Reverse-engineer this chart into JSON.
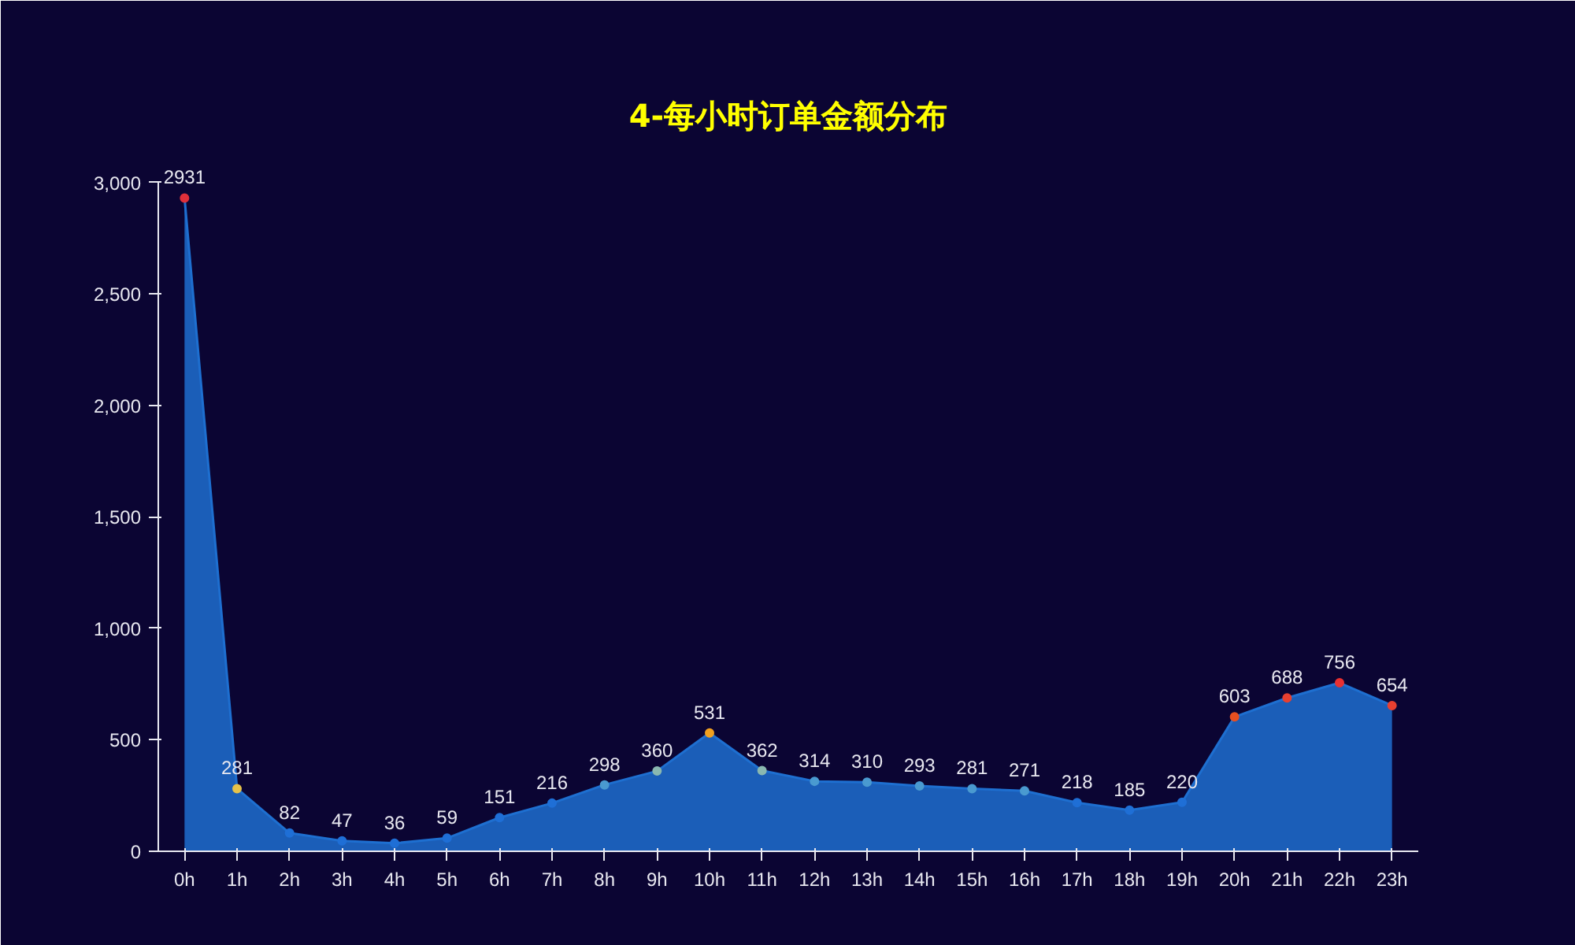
{
  "chart_data": {
    "type": "area",
    "title": "4-每小时订单金额分布",
    "categories": [
      "0h",
      "1h",
      "2h",
      "3h",
      "4h",
      "5h",
      "6h",
      "7h",
      "8h",
      "9h",
      "10h",
      "11h",
      "12h",
      "13h",
      "14h",
      "15h",
      "16h",
      "17h",
      "18h",
      "19h",
      "20h",
      "21h",
      "22h",
      "23h"
    ],
    "series": [
      {
        "color": "#1e6fd0",
        "colors": [
          "#e0303a",
          "#e6c24a",
          "#1f6fd6",
          "#1f6fd6",
          "#1f6fd6",
          "#1f6fd6",
          "#1f6fd6",
          "#1f6fd6",
          "#4a9ad0",
          "#8ab8b0",
          "#f0a020",
          "#8ab8b0",
          "#4a9ad0",
          "#4a9ad0",
          "#4a9ad0",
          "#4a9ad0",
          "#4a9ad0",
          "#1f6fd6",
          "#1f6fd6",
          "#1f6fd6",
          "#e85020",
          "#e84030",
          "#e83030",
          "#e84030"
        ],
        "values": [
          2931,
          281,
          82,
          47,
          36,
          59,
          151,
          216,
          298,
          360,
          531,
          362,
          314,
          310,
          293,
          281,
          271,
          218,
          185,
          220,
          603,
          688,
          756,
          654
        ]
      }
    ],
    "ylim": [
      0,
      3000
    ],
    "yticks": [
      0,
      {
        "value": 500,
        "label": "500"
      },
      {
        "value": 1000,
        "label": "1,000"
      },
      {
        "value": 1500,
        "label": "1,500"
      },
      {
        "value": 2000,
        "label": "2,000"
      },
      {
        "value": 2500,
        "label": "2,500"
      },
      {
        "value": 3000,
        "label": "3,000"
      }
    ],
    "grid": false,
    "marker": "circle",
    "line_style": "solid",
    "data_labels": true
  }
}
